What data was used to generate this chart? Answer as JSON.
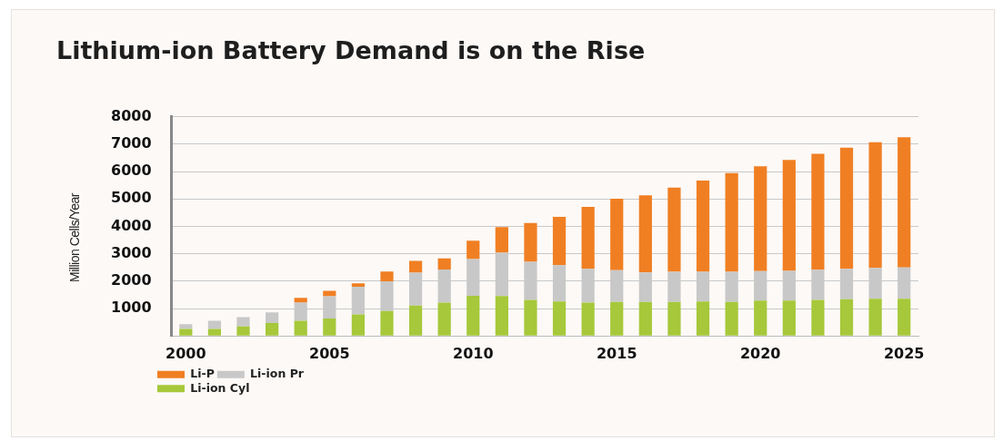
{
  "chart_data": {
    "type": "bar",
    "title": "Lithium-ion Battery Demand is on the Rise",
    "ylabel": "Million Cells/Year",
    "categories": [
      "2000",
      null,
      null,
      null,
      null,
      "2005",
      null,
      null,
      null,
      null,
      "2010",
      null,
      null,
      null,
      null,
      "2015",
      null,
      null,
      null,
      null,
      "2020",
      null,
      null,
      null,
      null,
      "2025"
    ],
    "stacked": true,
    "ylim": [
      0,
      8000
    ],
    "yticks": [
      {
        "value": 0,
        "label": null
      },
      1000,
      2000,
      3000,
      4000,
      5000,
      6000,
      7000,
      8000
    ],
    "grid": "y",
    "legend": "bottom left",
    "series": [
      {
        "name": "Li-ion Cyl",
        "color": "#a6c83a",
        "values": [
          260,
          260,
          350,
          470,
          560,
          640,
          790,
          910,
          1110,
          1220,
          1470,
          1460,
          1320,
          1260,
          1220,
          1240,
          1240,
          1240,
          1260,
          1240,
          1290,
          1290,
          1320,
          1340,
          1360,
          1360
        ]
      },
      {
        "name": "Li-ion Pr",
        "color": "#c8c8c8",
        "values": [
          170,
          300,
          340,
          390,
          660,
          810,
          1010,
          1090,
          1200,
          1210,
          1340,
          1580,
          1390,
          1320,
          1230,
          1160,
          1080,
          1100,
          1080,
          1100,
          1080,
          1090,
          1100,
          1110,
          1120,
          1140
        ]
      },
      {
        "name": "Li-P",
        "color": "#f07f23",
        "values": [
          0,
          0,
          0,
          0,
          170,
          200,
          120,
          350,
          430,
          400,
          670,
          930,
          1410,
          1770,
          2260,
          2610,
          2810,
          3070,
          3330,
          3600,
          3820,
          4040,
          4230,
          4420,
          4590,
          4750
        ]
      }
    ]
  }
}
